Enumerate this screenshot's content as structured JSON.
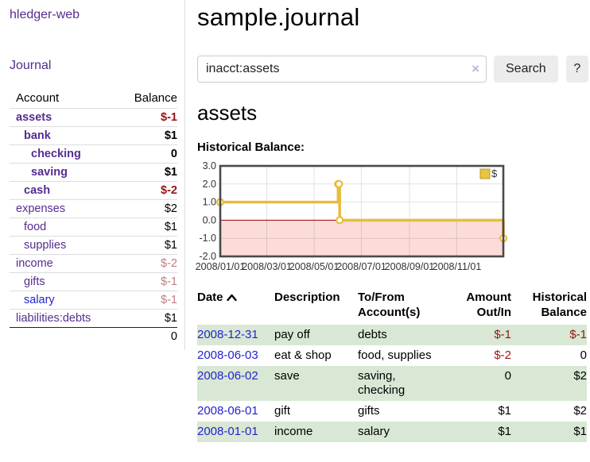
{
  "colors": {
    "link_purple": "#552d90",
    "link_blue": "#2323cc",
    "negative_strong": "#971414",
    "negative_soft": "#c07f7f",
    "row_stripe_green": "#d8e8d4",
    "chart_line_gold": "#e6bd3e",
    "chart_negative_fill": "#fcdcd9",
    "chart_zero_line": "#990000"
  },
  "sidebar": {
    "app_title": "hledger-web",
    "journal_link": "Journal",
    "accounts": {
      "header_account": "Account",
      "header_balance": "Balance",
      "rows": [
        {
          "name": "assets",
          "balance": "$-1"
        },
        {
          "name": "bank",
          "balance": "$1"
        },
        {
          "name": "checking",
          "balance": "0"
        },
        {
          "name": "saving",
          "balance": "$1"
        },
        {
          "name": "cash",
          "balance": "$-2"
        },
        {
          "name": "expenses",
          "balance": "$2"
        },
        {
          "name": "food",
          "balance": "$1"
        },
        {
          "name": "supplies",
          "balance": "$1"
        },
        {
          "name": "income",
          "balance": "$-2"
        },
        {
          "name": "gifts",
          "balance": "$-1"
        },
        {
          "name": "salary",
          "balance": "$-1"
        },
        {
          "name": "liabilities:debts",
          "balance": "$1"
        }
      ],
      "total": "0"
    }
  },
  "main": {
    "title": "sample.journal",
    "search": {
      "value": "inacct:assets",
      "clear_icon": "×",
      "search_button": "Search",
      "help_button": "?"
    },
    "account_heading": "assets",
    "chart_label": "Historical Balance:",
    "register": {
      "headers": {
        "date": "Date",
        "description": "Description",
        "account_line1": "To/From",
        "account_line2": "Account(s)",
        "amount_line1": "Amount",
        "amount_line2": "Out/In",
        "balance_line1": "Historical",
        "balance_line2": "Balance"
      },
      "rows": [
        {
          "date": "2008-12-31",
          "description": "pay off",
          "accounts": "debts",
          "amount": "$-1",
          "balance": "$-1"
        },
        {
          "date": "2008-06-03",
          "description": "eat & shop",
          "accounts": "food, supplies",
          "amount": "$-2",
          "balance": "0"
        },
        {
          "date": "2008-06-02",
          "description": "save",
          "accounts": "saving,\nchecking",
          "amount": "0",
          "balance": "$2"
        },
        {
          "date": "2008-06-01",
          "description": "gift",
          "accounts": "gifts",
          "amount": "$1",
          "balance": "$2"
        },
        {
          "date": "2008-01-01",
          "description": "income",
          "accounts": "salary",
          "amount": "$1",
          "balance": "$1"
        }
      ]
    }
  },
  "chart_data": {
    "type": "line",
    "step": true,
    "title": "Historical Balance of assets",
    "legend": "$",
    "legend_position": "top-right",
    "x_domain": [
      "2008-01-01",
      "2008-12-31"
    ],
    "ylim": [
      -2,
      3
    ],
    "y_ticks": [
      3.0,
      2.0,
      1.0,
      0.0,
      -1.0,
      -2.0
    ],
    "x_tick_dates": [
      "2008-01-01",
      "2008-03-01",
      "2008-05-01",
      "2008-07-01",
      "2008-09-01",
      "2008-11-01"
    ],
    "x_tick_labels": [
      "2008/01/01",
      "2008/03/01",
      "2008/05/01",
      "2008/07/01",
      "2008/09/01",
      "2008/11/01"
    ],
    "series": [
      {
        "name": "$",
        "x": [
          "2008-01-01",
          "2008-06-01",
          "2008-06-02",
          "2008-06-03",
          "2008-12-31"
        ],
        "values": [
          1,
          2,
          2,
          0,
          -1
        ]
      }
    ]
  }
}
